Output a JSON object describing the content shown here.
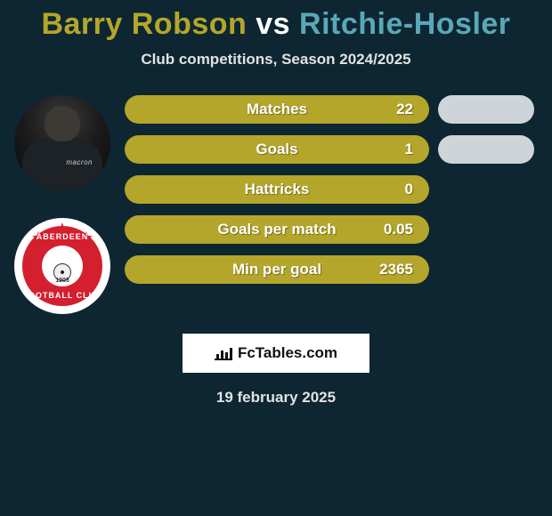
{
  "title": {
    "player1": "Barry Robson",
    "vs": "vs",
    "player2": "Ritchie-Hosler"
  },
  "subtitle": "Club competitions, Season 2024/2025",
  "colors": {
    "player1_bar": "#b4a62a",
    "player2_bar": "#cdd5d8",
    "player1_title": "#b4a62a",
    "player2_title": "#59a8b8",
    "background": "#0d2632"
  },
  "avatars": {
    "photo": {
      "brand_text": "macron"
    },
    "crest": {
      "text_top": "ABERDEEN",
      "text_bottom": "FOOTBALL CLUB",
      "year": "1903"
    }
  },
  "stats": [
    {
      "label": "Matches",
      "value_left": "22",
      "right_visible": true
    },
    {
      "label": "Goals",
      "value_left": "1",
      "right_visible": true
    },
    {
      "label": "Hattricks",
      "value_left": "0",
      "right_visible": false
    },
    {
      "label": "Goals per match",
      "value_left": "0.05",
      "right_visible": false
    },
    {
      "label": "Min per goal",
      "value_left": "2365",
      "right_visible": false
    }
  ],
  "branding": "FcTables.com",
  "date": "19 february 2025"
}
